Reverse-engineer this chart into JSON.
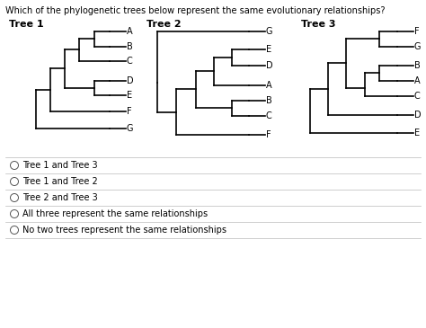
{
  "question": "Which of the phylogenetic trees below represent the same evolutionary relationships?",
  "tree1_title": "Tree 1",
  "tree2_title": "Tree 2",
  "tree3_title": "Tree 3",
  "options": [
    "Tree 1 and Tree 3",
    "Tree 1 and Tree 2",
    "Tree 2 and Tree 3",
    "All three represent the same relationships",
    "No two trees represent the same relationships"
  ],
  "line_color": "#000000",
  "bg_color": "#ffffff",
  "lw": 1.2
}
